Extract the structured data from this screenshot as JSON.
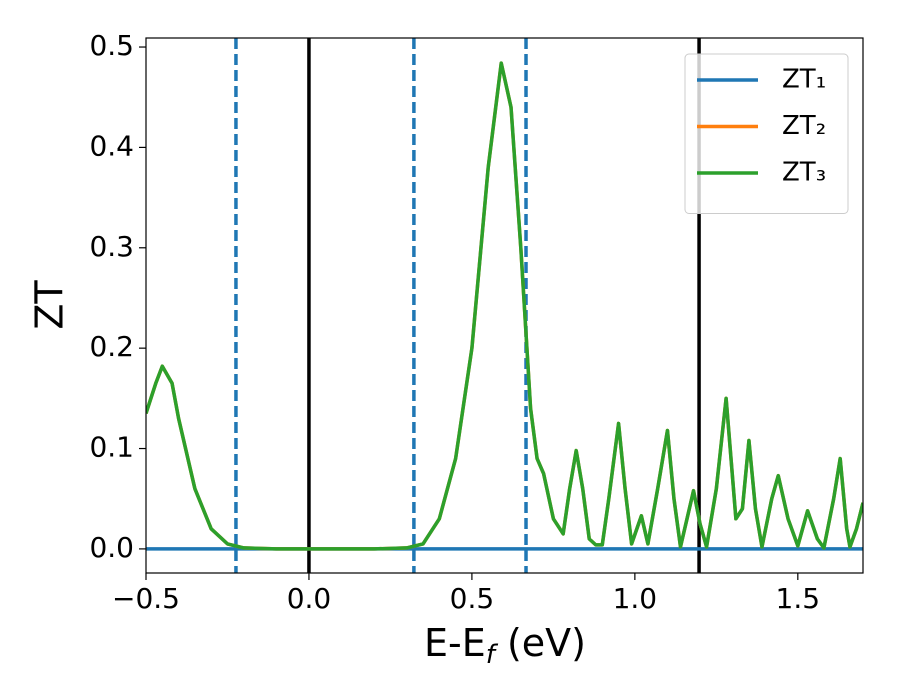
{
  "chart_data": {
    "type": "line",
    "xlabel": [
      "E-E",
      "f",
      " (eV)"
    ],
    "ylabel": "ZT",
    "xlim": [
      -0.5,
      1.7
    ],
    "ylim": [
      -0.024,
      0.509
    ],
    "xticks": [
      {
        "value": -0.5,
        "label": "−0.5"
      },
      {
        "value": 0,
        "label": "0.0"
      },
      {
        "value": 0.5,
        "label": "0.5"
      },
      {
        "value": 1,
        "label": "1.0"
      },
      {
        "value": 1.5,
        "label": "1.5"
      }
    ],
    "yticks": [
      {
        "value": 0,
        "label": "0.0"
      },
      {
        "value": 0.1,
        "label": "0.1"
      },
      {
        "value": 0.2,
        "label": "0.2"
      },
      {
        "value": 0.3,
        "label": "0.3"
      },
      {
        "value": 0.4,
        "label": "0.4"
      },
      {
        "value": 0.5,
        "label": "0.5"
      }
    ],
    "vlines": [
      {
        "value": 0,
        "color": "#000000",
        "style": "solid"
      },
      {
        "value": 1.197,
        "color": "#000000",
        "style": "solid"
      },
      {
        "value": -0.224,
        "color": "#1f77b4",
        "style": "dashed"
      },
      {
        "value": 0.322,
        "color": "#1f77b4",
        "style": "dashed"
      },
      {
        "value": 0.666,
        "color": "#1f77b4",
        "style": "dashed"
      }
    ],
    "legend": "upper right",
    "x": [
      -0.5,
      -0.47,
      -0.45,
      -0.42,
      -0.4,
      -0.35,
      -0.3,
      -0.25,
      -0.2,
      -0.1,
      0,
      0.1,
      0.2,
      0.3,
      0.35,
      0.4,
      0.45,
      0.5,
      0.55,
      0.59,
      0.62,
      0.65,
      0.68,
      0.7,
      0.72,
      0.75,
      0.78,
      0.8,
      0.82,
      0.84,
      0.86,
      0.88,
      0.9,
      0.92,
      0.95,
      0.97,
      0.99,
      1.02,
      1.04,
      1.07,
      1.1,
      1.12,
      1.14,
      1.16,
      1.18,
      1.2,
      1.22,
      1.25,
      1.28,
      1.31,
      1.33,
      1.35,
      1.37,
      1.39,
      1.42,
      1.44,
      1.47,
      1.5,
      1.53,
      1.56,
      1.58,
      1.61,
      1.63,
      1.65,
      1.66,
      1.68,
      1.7
    ],
    "series": [
      {
        "name": "ZT₁",
        "color": "#1f77b4",
        "values": [
          0,
          0,
          0,
          0,
          0,
          0,
          0,
          0,
          0,
          0,
          0,
          0,
          0,
          0,
          0,
          0,
          0,
          0,
          0,
          0,
          0,
          0,
          0,
          0,
          0,
          0,
          0,
          0,
          0,
          0,
          0,
          0,
          0,
          0,
          0,
          0,
          0,
          0,
          0,
          0,
          0,
          0,
          0,
          0,
          0,
          0,
          0,
          0,
          0,
          0,
          0,
          0,
          0,
          0,
          0,
          0,
          0,
          0,
          0,
          0,
          0,
          0,
          0,
          0,
          0,
          0,
          0
        ]
      },
      {
        "name": "ZT₂",
        "color": "#ff7f0e",
        "values": [
          0.135,
          0.165,
          0.182,
          0.165,
          0.13,
          0.06,
          0.02,
          0.005,
          0.001,
          0,
          0,
          0,
          0,
          0.001,
          0.005,
          0.03,
          0.09,
          0.2,
          0.38,
          0.484,
          0.44,
          0.3,
          0.14,
          0.09,
          0.075,
          0.03,
          0.015,
          0.06,
          0.098,
          0.06,
          0.01,
          0.004,
          0.004,
          0.05,
          0.125,
          0.06,
          0.005,
          0.033,
          0.005,
          0.06,
          0.118,
          0.05,
          0.002,
          0.03,
          0.058,
          0.025,
          0.002,
          0.06,
          0.15,
          0.03,
          0.04,
          0.108,
          0.04,
          0.002,
          0.05,
          0.073,
          0.03,
          0.003,
          0.038,
          0.01,
          0.001,
          0.05,
          0.09,
          0.02,
          0.002,
          0.02,
          0.046
        ]
      },
      {
        "name": "ZT₃",
        "color": "#2ca02c",
        "values": [
          0.135,
          0.165,
          0.182,
          0.165,
          0.13,
          0.06,
          0.02,
          0.005,
          0.001,
          0,
          0,
          0,
          0,
          0.001,
          0.005,
          0.03,
          0.09,
          0.2,
          0.38,
          0.484,
          0.44,
          0.3,
          0.14,
          0.09,
          0.075,
          0.03,
          0.015,
          0.06,
          0.098,
          0.06,
          0.01,
          0.004,
          0.004,
          0.05,
          0.125,
          0.06,
          0.005,
          0.033,
          0.005,
          0.06,
          0.118,
          0.05,
          0.002,
          0.03,
          0.058,
          0.025,
          0.002,
          0.06,
          0.15,
          0.03,
          0.04,
          0.108,
          0.04,
          0.002,
          0.05,
          0.073,
          0.03,
          0.003,
          0.038,
          0.01,
          0.001,
          0.05,
          0.09,
          0.02,
          0.002,
          0.02,
          0.046
        ]
      }
    ]
  }
}
